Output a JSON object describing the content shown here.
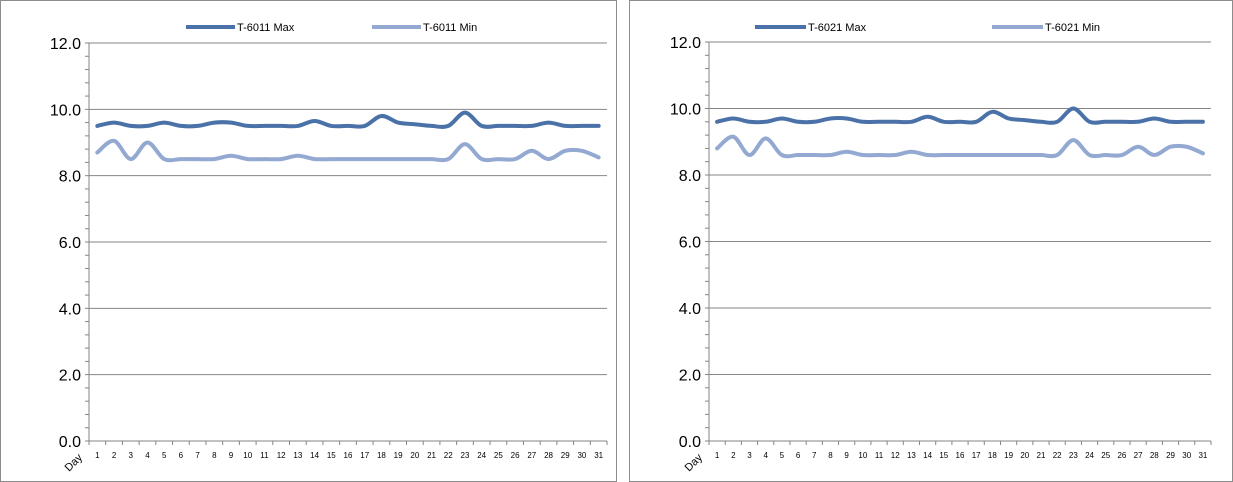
{
  "chart_data": [
    {
      "type": "line",
      "x_title": "Day",
      "x": [
        1,
        2,
        3,
        4,
        5,
        6,
        7,
        8,
        9,
        10,
        11,
        12,
        13,
        14,
        15,
        16,
        17,
        18,
        19,
        20,
        21,
        22,
        23,
        24,
        25,
        26,
        27,
        28,
        29,
        30,
        31
      ],
      "ylim": [
        0,
        12
      ],
      "y_ticks": [
        "0.0",
        "2.0",
        "4.0",
        "6.0",
        "8.0",
        "10.0",
        "12.0"
      ],
      "grid": true,
      "legend_position": "top",
      "series": [
        {
          "name": "T-6011 Max",
          "color": "#4a72a8",
          "values": [
            9.5,
            9.6,
            9.5,
            9.5,
            9.6,
            9.5,
            9.5,
            9.6,
            9.6,
            9.5,
            9.5,
            9.5,
            9.5,
            9.65,
            9.5,
            9.5,
            9.5,
            9.8,
            9.6,
            9.55,
            9.5,
            9.5,
            9.9,
            9.5,
            9.5,
            9.5,
            9.5,
            9.6,
            9.5,
            9.5,
            9.5
          ]
        },
        {
          "name": "T-6011 Min",
          "color": "#93a9d2",
          "values": [
            8.7,
            9.05,
            8.5,
            9.0,
            8.5,
            8.5,
            8.5,
            8.5,
            8.6,
            8.5,
            8.5,
            8.5,
            8.6,
            8.5,
            8.5,
            8.5,
            8.5,
            8.5,
            8.5,
            8.5,
            8.5,
            8.5,
            8.95,
            8.5,
            8.5,
            8.5,
            8.75,
            8.5,
            8.75,
            8.75,
            8.55
          ]
        }
      ]
    },
    {
      "type": "line",
      "x_title": "Day",
      "x": [
        1,
        2,
        3,
        4,
        5,
        6,
        7,
        8,
        9,
        10,
        11,
        12,
        13,
        14,
        15,
        16,
        17,
        18,
        19,
        20,
        21,
        22,
        23,
        24,
        25,
        26,
        27,
        28,
        29,
        30,
        31
      ],
      "ylim": [
        0,
        12
      ],
      "y_ticks": [
        "0.0",
        "2.0",
        "4.0",
        "6.0",
        "8.0",
        "10.0",
        "12.0"
      ],
      "grid": true,
      "legend_position": "top",
      "series": [
        {
          "name": "T-6021 Max",
          "color": "#4a72a8",
          "values": [
            9.6,
            9.7,
            9.6,
            9.6,
            9.7,
            9.6,
            9.6,
            9.7,
            9.7,
            9.6,
            9.6,
            9.6,
            9.6,
            9.75,
            9.6,
            9.6,
            9.6,
            9.9,
            9.7,
            9.65,
            9.6,
            9.6,
            10.0,
            9.6,
            9.6,
            9.6,
            9.6,
            9.7,
            9.6,
            9.6,
            9.6
          ]
        },
        {
          "name": "T-6021 Min",
          "color": "#93a9d2",
          "values": [
            8.8,
            9.15,
            8.6,
            9.1,
            8.6,
            8.6,
            8.6,
            8.6,
            8.7,
            8.6,
            8.6,
            8.6,
            8.7,
            8.6,
            8.6,
            8.6,
            8.6,
            8.6,
            8.6,
            8.6,
            8.6,
            8.6,
            9.05,
            8.6,
            8.6,
            8.6,
            8.85,
            8.6,
            8.85,
            8.85,
            8.65
          ]
        }
      ]
    }
  ]
}
